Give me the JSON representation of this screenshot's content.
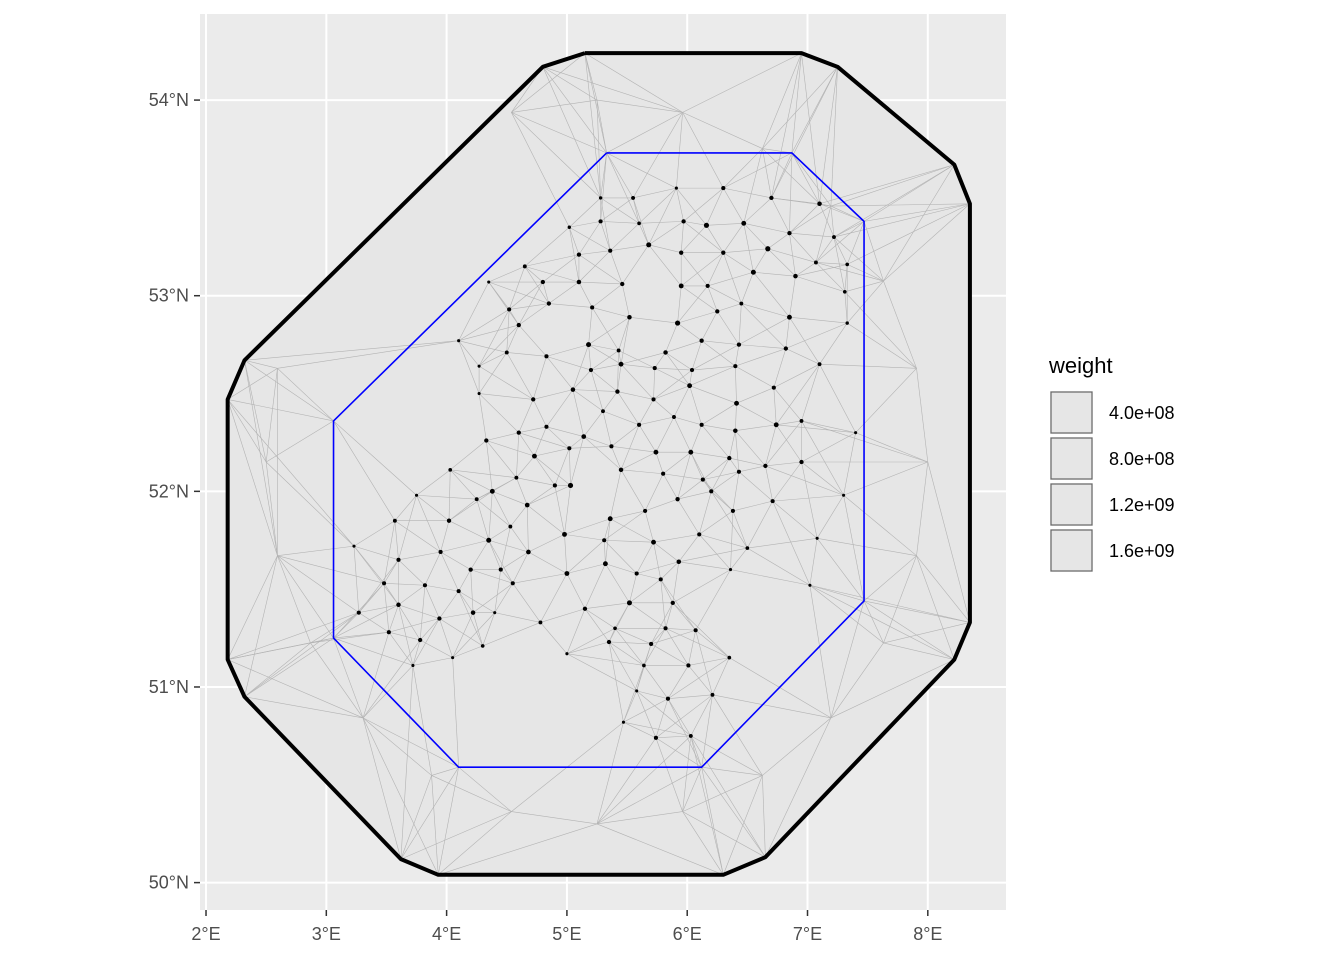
{
  "chart_data": {
    "type": "scatter",
    "title": "",
    "xlabel": "",
    "ylabel": "",
    "xlim": [
      1.95,
      8.65
    ],
    "ylim": [
      49.86,
      54.44
    ],
    "x_ticks": [
      2,
      3,
      4,
      5,
      6,
      7,
      8
    ],
    "x_tick_labels": [
      "2°E",
      "3°E",
      "4°E",
      "5°E",
      "6°E",
      "7°E",
      "8°E"
    ],
    "y_ticks": [
      50,
      51,
      52,
      53,
      54
    ],
    "y_tick_labels": [
      "50°N",
      "51°N",
      "52°N",
      "53°N",
      "54°N"
    ],
    "grid": true,
    "colors": {
      "panel": "#ebebeb",
      "grid": "#ffffff",
      "mesh_fill": "#e6e6e6",
      "mesh_edge": "#b3b3b3",
      "outer_boundary": "#000000",
      "inner_boundary": "#0000ff",
      "points": "#000000"
    },
    "outer_boundary": [
      [
        5.15,
        54.24
      ],
      [
        6.95,
        54.24
      ],
      [
        7.25,
        54.17
      ],
      [
        8.22,
        53.67
      ],
      [
        8.35,
        53.47
      ],
      [
        8.35,
        51.33
      ],
      [
        8.22,
        51.14
      ],
      [
        6.65,
        50.13
      ],
      [
        6.3,
        50.04
      ],
      [
        3.93,
        50.04
      ],
      [
        3.62,
        50.12
      ],
      [
        2.32,
        50.95
      ],
      [
        2.18,
        51.14
      ],
      [
        2.18,
        52.47
      ],
      [
        2.32,
        52.67
      ],
      [
        4.8,
        54.17
      ],
      [
        5.15,
        54.24
      ]
    ],
    "inner_boundary": [
      [
        5.33,
        53.73
      ],
      [
        6.87,
        53.73
      ],
      [
        7.47,
        53.38
      ],
      [
        7.47,
        51.44
      ],
      [
        6.12,
        50.59
      ],
      [
        4.1,
        50.59
      ],
      [
        3.06,
        51.25
      ],
      [
        3.06,
        52.36
      ],
      [
        5.33,
        53.73
      ]
    ],
    "series": [
      {
        "name": "weight",
        "points": [
          [
            5.28,
            53.5,
            400000000.0
          ],
          [
            5.55,
            53.5,
            600000000.0
          ],
          [
            5.91,
            53.55,
            300000000.0
          ],
          [
            6.3,
            53.55,
            700000000.0
          ],
          [
            6.7,
            53.5,
            800000000.0
          ],
          [
            7.1,
            53.47,
            900000000.0
          ],
          [
            5.02,
            53.35,
            400000000.0
          ],
          [
            5.28,
            53.38,
            700000000.0
          ],
          [
            5.6,
            53.37,
            500000000.0
          ],
          [
            5.97,
            53.38,
            800000000.0
          ],
          [
            6.16,
            53.36,
            1300000000.0
          ],
          [
            6.47,
            53.37,
            1100000000.0
          ],
          [
            6.85,
            53.32,
            800000000.0
          ],
          [
            7.22,
            53.3,
            600000000.0
          ],
          [
            4.65,
            53.15,
            600000000.0
          ],
          [
            5.1,
            53.21,
            800000000.0
          ],
          [
            5.36,
            53.23,
            700000000.0
          ],
          [
            5.68,
            53.26,
            1200000000.0
          ],
          [
            5.95,
            53.22,
            800000000.0
          ],
          [
            6.3,
            53.22,
            800000000.0
          ],
          [
            6.67,
            53.24,
            1300000000.0
          ],
          [
            7.07,
            53.17,
            600000000.0
          ],
          [
            7.33,
            53.16,
            500000000.0
          ],
          [
            4.35,
            53.07,
            300000000.0
          ],
          [
            4.8,
            53.07,
            800000000.0
          ],
          [
            5.1,
            53.07,
            900000000.0
          ],
          [
            5.46,
            53.06,
            800000000.0
          ],
          [
            5.95,
            53.05,
            1100000000.0
          ],
          [
            6.17,
            53.05,
            700000000.0
          ],
          [
            6.55,
            53.12,
            1200000000.0
          ],
          [
            6.9,
            53.1,
            900000000.0
          ],
          [
            7.31,
            53.02,
            500000000.0
          ],
          [
            4.52,
            52.93,
            700000000.0
          ],
          [
            4.85,
            52.96,
            800000000.0
          ],
          [
            5.21,
            52.94,
            700000000.0
          ],
          [
            5.52,
            52.89,
            900000000.0
          ],
          [
            5.92,
            52.86,
            1300000000.0
          ],
          [
            6.25,
            52.92,
            800000000.0
          ],
          [
            6.45,
            52.96,
            600000000.0
          ],
          [
            6.85,
            52.89,
            1100000000.0
          ],
          [
            7.33,
            52.86,
            400000000.0
          ],
          [
            4.1,
            52.77,
            300000000.0
          ],
          [
            4.6,
            52.85,
            800000000.0
          ],
          [
            5.18,
            52.75,
            1200000000.0
          ],
          [
            5.43,
            52.72,
            600000000.0
          ],
          [
            5.82,
            52.71,
            900000000.0
          ],
          [
            6.12,
            52.77,
            800000000.0
          ],
          [
            6.43,
            52.75,
            800000000.0
          ],
          [
            6.82,
            52.73,
            800000000.0
          ],
          [
            7.1,
            52.65,
            600000000.0
          ],
          [
            4.27,
            52.64,
            300000000.0
          ],
          [
            4.5,
            52.71,
            600000000.0
          ],
          [
            4.83,
            52.69,
            700000000.0
          ],
          [
            5.2,
            52.62,
            700000000.0
          ],
          [
            5.45,
            52.65,
            1100000000.0
          ],
          [
            5.73,
            52.63,
            700000000.0
          ],
          [
            6.04,
            52.62,
            700000000.0
          ],
          [
            6.4,
            52.64,
            700000000.0
          ],
          [
            6.72,
            52.53,
            700000000.0
          ],
          [
            4.27,
            52.5,
            300000000.0
          ],
          [
            4.72,
            52.47,
            800000000.0
          ],
          [
            5.05,
            52.52,
            900000000.0
          ],
          [
            5.42,
            52.51,
            800000000.0
          ],
          [
            5.72,
            52.47,
            700000000.0
          ],
          [
            6.02,
            52.54,
            1100000000.0
          ],
          [
            6.41,
            52.45,
            1100000000.0
          ],
          [
            6.95,
            52.36,
            600000000.0
          ],
          [
            4.6,
            52.3,
            800000000.0
          ],
          [
            4.83,
            52.33,
            700000000.0
          ],
          [
            5.14,
            52.28,
            1000000000.0
          ],
          [
            5.3,
            52.41,
            600000000.0
          ],
          [
            5.6,
            52.34,
            700000000.0
          ],
          [
            5.89,
            52.38,
            600000000.0
          ],
          [
            6.12,
            52.34,
            700000000.0
          ],
          [
            6.4,
            52.31,
            900000000.0
          ],
          [
            6.74,
            52.34,
            1100000000.0
          ],
          [
            7.4,
            52.3,
            300000000.0
          ],
          [
            4.33,
            52.26,
            800000000.0
          ],
          [
            4.73,
            52.18,
            1100000000.0
          ],
          [
            5.02,
            52.22,
            700000000.0
          ],
          [
            5.37,
            52.23,
            700000000.0
          ],
          [
            5.74,
            52.2,
            1100000000.0
          ],
          [
            6.03,
            52.2,
            1100000000.0
          ],
          [
            6.35,
            52.17,
            800000000.0
          ],
          [
            6.65,
            52.13,
            800000000.0
          ],
          [
            6.95,
            52.15,
            800000000.0
          ],
          [
            4.38,
            52.0,
            1100000000.0
          ],
          [
            4.58,
            52.07,
            600000000.0
          ],
          [
            4.9,
            52.03,
            700000000.0
          ],
          [
            5.03,
            52.03,
            1300000000.0
          ],
          [
            5.45,
            52.11,
            900000000.0
          ],
          [
            5.8,
            52.09,
            700000000.0
          ],
          [
            6.13,
            52.06,
            700000000.0
          ],
          [
            6.43,
            52.1,
            700000000.0
          ],
          [
            6.2,
            52.0,
            700000000.0
          ],
          [
            7.3,
            51.98,
            300000000.0
          ],
          [
            3.75,
            51.98,
            300000000.0
          ],
          [
            4.03,
            52.11,
            500000000.0
          ],
          [
            4.25,
            51.96,
            600000000.0
          ],
          [
            4.67,
            51.93,
            1000000000.0
          ],
          [
            5.36,
            51.86,
            1100000000.0
          ],
          [
            5.65,
            51.9,
            700000000.0
          ],
          [
            5.92,
            51.96,
            800000000.0
          ],
          [
            6.38,
            51.9,
            700000000.0
          ],
          [
            6.71,
            51.95,
            700000000.0
          ],
          [
            3.57,
            51.85,
            600000000.0
          ],
          [
            4.02,
            51.85,
            800000000.0
          ],
          [
            4.53,
            51.82,
            600000000.0
          ],
          [
            4.35,
            51.75,
            1200000000.0
          ],
          [
            4.98,
            51.78,
            1100000000.0
          ],
          [
            5.31,
            51.75,
            700000000.0
          ],
          [
            5.72,
            51.74,
            1100000000.0
          ],
          [
            6.1,
            51.78,
            700000000.0
          ],
          [
            6.5,
            51.71,
            500000000.0
          ],
          [
            7.08,
            51.76,
            300000000.0
          ],
          [
            3.23,
            51.72,
            300000000.0
          ],
          [
            3.6,
            51.65,
            700000000.0
          ],
          [
            3.95,
            51.69,
            700000000.0
          ],
          [
            4.2,
            51.6,
            800000000.0
          ],
          [
            4.45,
            51.6,
            700000000.0
          ],
          [
            4.68,
            51.69,
            1000000000.0
          ],
          [
            5.0,
            51.58,
            1100000000.0
          ],
          [
            5.32,
            51.63,
            1100000000.0
          ],
          [
            5.58,
            51.58,
            700000000.0
          ],
          [
            5.78,
            51.55,
            700000000.0
          ],
          [
            5.93,
            51.64,
            900000000.0
          ],
          [
            6.36,
            51.6,
            300000000.0
          ],
          [
            3.48,
            51.53,
            700000000.0
          ],
          [
            3.82,
            51.52,
            700000000.0
          ],
          [
            4.1,
            51.49,
            700000000.0
          ],
          [
            4.55,
            51.53,
            700000000.0
          ],
          [
            4.4,
            51.38,
            300000000.0
          ],
          [
            5.15,
            51.4,
            800000000.0
          ],
          [
            5.52,
            51.43,
            1200000000.0
          ],
          [
            5.88,
            51.43,
            800000000.0
          ],
          [
            7.02,
            51.52,
            300000000.0
          ],
          [
            3.27,
            51.38,
            700000000.0
          ],
          [
            3.6,
            51.42,
            900000000.0
          ],
          [
            3.94,
            51.35,
            800000000.0
          ],
          [
            4.22,
            51.38,
            900000000.0
          ],
          [
            4.78,
            51.33,
            600000000.0
          ],
          [
            5.4,
            51.3,
            500000000.0
          ],
          [
            5.82,
            51.3,
            700000000.0
          ],
          [
            6.07,
            51.29,
            700000000.0
          ],
          [
            3.52,
            51.28,
            700000000.0
          ],
          [
            3.78,
            51.24,
            800000000.0
          ],
          [
            4.3,
            51.21,
            500000000.0
          ],
          [
            4.05,
            51.15,
            300000000.0
          ],
          [
            5.0,
            51.17,
            300000000.0
          ],
          [
            5.35,
            51.23,
            800000000.0
          ],
          [
            5.7,
            51.22,
            700000000.0
          ],
          [
            6.35,
            51.15,
            500000000.0
          ],
          [
            3.72,
            51.11,
            300000000.0
          ],
          [
            5.64,
            51.11,
            500000000.0
          ],
          [
            6.01,
            51.11,
            700000000.0
          ],
          [
            5.58,
            50.98,
            300000000.0
          ],
          [
            5.84,
            50.94,
            700000000.0
          ],
          [
            6.21,
            50.96,
            600000000.0
          ],
          [
            5.47,
            50.82,
            300000000.0
          ],
          [
            5.74,
            50.74,
            700000000.0
          ],
          [
            6.03,
            50.75,
            600000000.0
          ]
        ]
      }
    ],
    "legend": {
      "title": "weight",
      "position": "right",
      "entries": [
        {
          "label": "4.0e+08",
          "value": 400000000.0
        },
        {
          "label": "8.0e+08",
          "value": 800000000.0
        },
        {
          "label": "1.2e+09",
          "value": 1200000000.0
        },
        {
          "label": "1.6e+09",
          "value": 1600000000.0
        }
      ]
    }
  }
}
